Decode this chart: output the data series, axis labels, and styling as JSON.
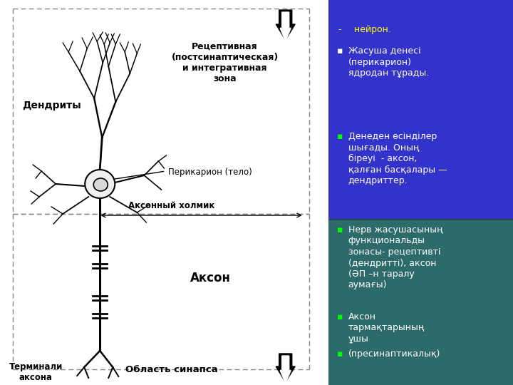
{
  "right_bg_blue": "#3333cc",
  "right_bg_teal": "#2d6b6b",
  "split_ratio": 0.64,
  "labels": {
    "dendrity": "Дендриты",
    "perikaron": "Перикарион (тело)",
    "receptive": "Рецептивная\n(постсинаптическая)\nи интегративная\nзона",
    "axon_hillock": "Аксонный холмик",
    "axon": "Аксон",
    "terminals": "Терминали\nаксона",
    "synapse": "Область синапса"
  },
  "right_items": [
    {
      "bullet": "-",
      "bc": "#ffff00",
      "text": "  нейрон.",
      "tc": "#ffff00",
      "section": "blue"
    },
    {
      "bullet": "▪",
      "bc": "#ffffff",
      "text": "Жасуша денесі\n(перикарион)\nядродан тұрады.",
      "tc": "#ffffff",
      "section": "blue"
    },
    {
      "bullet": "▪",
      "bc": "#00ff00",
      "text": "Денеден өсінділер\nшығады. Оның\nбіреуі  - аксон,\nқалған басқалары —\nдендриттер.",
      "tc": "#ffffff",
      "section": "teal"
    },
    {
      "bullet": "▪",
      "bc": "#00ff00",
      "text": "Нерв жасушасының\nфункциональды\nзонасы- рецептивті\n(дендритті), аксон\n(ӘП –н таралу\nаумағы)",
      "tc": "#ffffff",
      "section": "teal"
    },
    {
      "bullet": "▪",
      "bc": "#00ff00",
      "text": "Аксон\nтармақтарының\nұшы",
      "tc": "#ffffff",
      "section": "teal"
    },
    {
      "bullet": "▪",
      "bc": "#00ff00",
      "text": "(пресинаптикалық)",
      "tc": "#ffffff",
      "section": "teal"
    }
  ]
}
